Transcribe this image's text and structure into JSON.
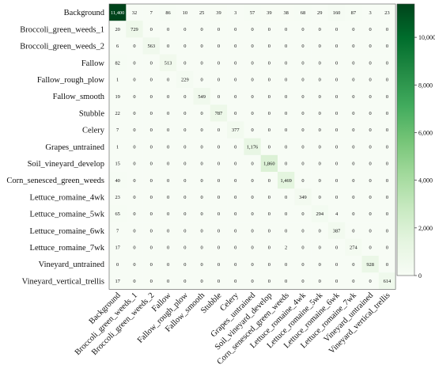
{
  "chart_data": {
    "type": "heatmap",
    "title": "",
    "xlabel": "",
    "ylabel": "",
    "row_labels": [
      "Background",
      "Broccoli_green_weeds_1",
      "Broccoli_green_weeds_2",
      "Fallow",
      "Fallow_rough_plow",
      "Fallow_smooth",
      "Stubble",
      "Celery",
      "Grapes_untrained",
      "Soil_vineyard_develop",
      "Corn_senesced_green_weeds",
      "Lettuce_romaine_4wk",
      "Lettuce_romaine_5wk",
      "Lettuce_romaine_6wk",
      "Lettuce_romaine_7wk",
      "Vineyard_untrained",
      "Vineyard_vertical_trellis"
    ],
    "col_labels": [
      "Background",
      "Broccoli_green_weeds_1",
      "Broccoli_green_weeds_2",
      "Fallow",
      "Fallow_rough_plow",
      "Fallow_smooth",
      "Stubble",
      "Celery",
      "Grapes_untrained",
      "Soil_vineyard_develop",
      "Corn_senesced_green_weeds",
      "Lettuce_romaine_4wk",
      "Lettuce_romaine_5wk",
      "Lettuce_romaine_6wk",
      "Lettuce_romaine_7wk",
      "Vineyard_untrained",
      "Vineyard_vertical_trellis"
    ],
    "values": [
      [
        11400,
        32,
        7,
        86,
        10,
        25,
        39,
        3,
        57,
        39,
        38,
        68,
        29,
        160,
        87,
        3,
        23
      ],
      [
        20,
        729,
        0,
        0,
        0,
        0,
        0,
        0,
        0,
        0,
        0,
        0,
        0,
        0,
        0,
        0,
        0
      ],
      [
        6,
        0,
        563,
        0,
        0,
        0,
        0,
        0,
        0,
        0,
        0,
        0,
        0,
        0,
        0,
        0,
        0
      ],
      [
        82,
        0,
        0,
        513,
        0,
        0,
        0,
        0,
        0,
        0,
        0,
        0,
        0,
        0,
        0,
        0,
        0
      ],
      [
        1,
        0,
        0,
        0,
        229,
        0,
        0,
        0,
        0,
        0,
        0,
        0,
        0,
        0,
        0,
        0,
        0
      ],
      [
        19,
        0,
        0,
        0,
        0,
        549,
        0,
        0,
        0,
        0,
        0,
        0,
        0,
        0,
        0,
        0,
        0
      ],
      [
        22,
        0,
        0,
        0,
        0,
        0,
        787,
        0,
        0,
        0,
        0,
        0,
        0,
        0,
        0,
        0,
        0
      ],
      [
        7,
        0,
        0,
        0,
        0,
        0,
        0,
        377,
        0,
        0,
        0,
        0,
        0,
        0,
        0,
        0,
        0
      ],
      [
        1,
        0,
        0,
        0,
        0,
        0,
        0,
        0,
        1176,
        0,
        0,
        0,
        0,
        0,
        0,
        0,
        0
      ],
      [
        15,
        0,
        0,
        0,
        0,
        0,
        0,
        0,
        0,
        1860,
        0,
        0,
        0,
        0,
        0,
        0,
        0
      ],
      [
        40,
        0,
        0,
        0,
        0,
        0,
        0,
        0,
        0,
        0,
        1469,
        0,
        0,
        0,
        0,
        0,
        0
      ],
      [
        23,
        0,
        0,
        0,
        0,
        0,
        0,
        0,
        0,
        0,
        0,
        349,
        0,
        0,
        0,
        0,
        0
      ],
      [
        65,
        0,
        0,
        0,
        0,
        0,
        0,
        0,
        0,
        0,
        0,
        0,
        294,
        4,
        0,
        0,
        0
      ],
      [
        7,
        0,
        0,
        0,
        0,
        0,
        0,
        0,
        0,
        0,
        0,
        0,
        0,
        387,
        0,
        0,
        0
      ],
      [
        17,
        0,
        0,
        0,
        0,
        0,
        0,
        0,
        0,
        0,
        2,
        0,
        0,
        0,
        274,
        0,
        0
      ],
      [
        0,
        0,
        0,
        0,
        0,
        0,
        0,
        0,
        0,
        0,
        0,
        0,
        0,
        0,
        0,
        928,
        0
      ],
      [
        17,
        0,
        0,
        0,
        0,
        0,
        0,
        0,
        0,
        0,
        0,
        0,
        0,
        0,
        0,
        0,
        614
      ]
    ],
    "value_labels": [
      [
        "11,400",
        "32",
        "7",
        "86",
        "10",
        "25",
        "39",
        "3",
        "57",
        "39",
        "38",
        "68",
        "29",
        "160",
        "87",
        "3",
        "23"
      ],
      [
        "20",
        "729",
        "0",
        "0",
        "0",
        "0",
        "0",
        "0",
        "0",
        "0",
        "0",
        "0",
        "0",
        "0",
        "0",
        "0",
        "0"
      ],
      [
        "6",
        "0",
        "563",
        "0",
        "0",
        "0",
        "0",
        "0",
        "0",
        "0",
        "0",
        "0",
        "0",
        "0",
        "0",
        "0",
        "0"
      ],
      [
        "82",
        "0",
        "0",
        "513",
        "0",
        "0",
        "0",
        "0",
        "0",
        "0",
        "0",
        "0",
        "0",
        "0",
        "0",
        "0",
        "0"
      ],
      [
        "1",
        "0",
        "0",
        "0",
        "229",
        "0",
        "0",
        "0",
        "0",
        "0",
        "0",
        "0",
        "0",
        "0",
        "0",
        "0",
        "0"
      ],
      [
        "19",
        "0",
        "0",
        "0",
        "0",
        "549",
        "0",
        "0",
        "0",
        "0",
        "0",
        "0",
        "0",
        "0",
        "0",
        "0",
        "0"
      ],
      [
        "22",
        "0",
        "0",
        "0",
        "0",
        "0",
        "787",
        "0",
        "0",
        "0",
        "0",
        "0",
        "0",
        "0",
        "0",
        "0",
        "0"
      ],
      [
        "7",
        "0",
        "0",
        "0",
        "0",
        "0",
        "0",
        "377",
        "0",
        "0",
        "0",
        "0",
        "0",
        "0",
        "0",
        "0",
        "0"
      ],
      [
        "1",
        "0",
        "0",
        "0",
        "0",
        "0",
        "0",
        "0",
        "1,176",
        "0",
        "0",
        "0",
        "0",
        "0",
        "0",
        "0",
        "0"
      ],
      [
        "15",
        "0",
        "0",
        "0",
        "0",
        "0",
        "0",
        "0",
        "0",
        "1,860",
        "0",
        "0",
        "0",
        "0",
        "0",
        "0",
        "0"
      ],
      [
        "40",
        "0",
        "0",
        "0",
        "0",
        "0",
        "0",
        "0",
        "0",
        "0",
        "1,469",
        "0",
        "0",
        "0",
        "0",
        "0",
        "0"
      ],
      [
        "23",
        "0",
        "0",
        "0",
        "0",
        "0",
        "0",
        "0",
        "0",
        "0",
        "0",
        "349",
        "0",
        "0",
        "0",
        "0",
        "0"
      ],
      [
        "65",
        "0",
        "0",
        "0",
        "0",
        "0",
        "0",
        "0",
        "0",
        "0",
        "0",
        "0",
        "294",
        "4",
        "0",
        "0",
        "0"
      ],
      [
        "7",
        "0",
        "0",
        "0",
        "0",
        "0",
        "0",
        "0",
        "0",
        "0",
        "0",
        "0",
        "0",
        "387",
        "0",
        "0",
        "0"
      ],
      [
        "17",
        "0",
        "0",
        "0",
        "0",
        "0",
        "0",
        "0",
        "0",
        "0",
        "2",
        "0",
        "0",
        "0",
        "274",
        "0",
        "0"
      ],
      [
        "0",
        "0",
        "0",
        "0",
        "0",
        "0",
        "0",
        "0",
        "0",
        "0",
        "0",
        "0",
        "0",
        "0",
        "0",
        "928",
        "0"
      ],
      [
        "17",
        "0",
        "0",
        "0",
        "0",
        "0",
        "0",
        "0",
        "0",
        "0",
        "0",
        "0",
        "0",
        "0",
        "0",
        "0",
        "614"
      ]
    ],
    "colorbar": {
      "range": [
        0,
        11400
      ],
      "ticks": [
        0,
        2000,
        4000,
        6000,
        8000,
        10000
      ],
      "tick_labels": [
        "0",
        "2,000",
        "4,000",
        "6,000",
        "8,000",
        "10,000"
      ]
    },
    "colors": {
      "low": "#f7fcf5",
      "high": "#00441b",
      "text_dark": "#111111",
      "text_light": "#ffffff"
    },
    "grid": false
  }
}
